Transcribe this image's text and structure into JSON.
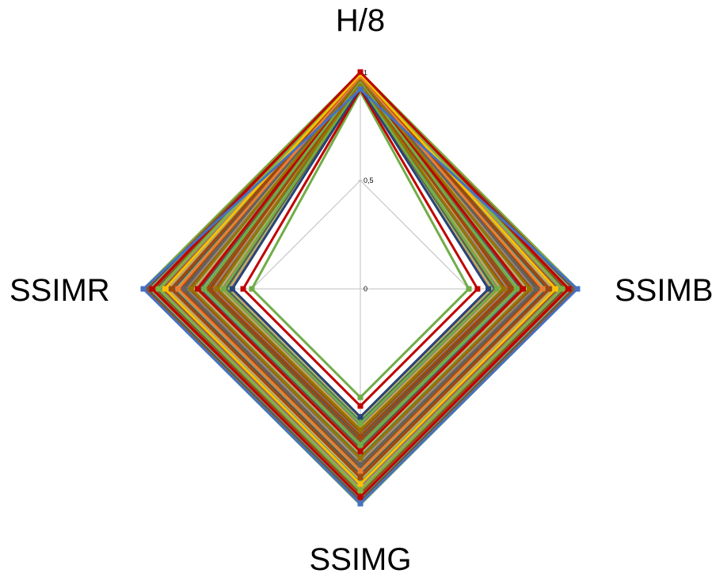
{
  "chart_data": {
    "type": "radar",
    "axes": [
      "H/8",
      "SSIMB",
      "SSIMG",
      "SSIMR"
    ],
    "rlim": [
      0,
      1
    ],
    "ticks": [
      "0",
      "0,5",
      "1"
    ],
    "grid": true,
    "legend": "none",
    "colors": [
      "#4472c4",
      "#ed7d31",
      "#a5a5a5",
      "#ffc000",
      "#5b9bd5",
      "#70ad47",
      "#264478",
      "#9e480e",
      "#636363",
      "#997300",
      "#c00000",
      "#7cb342"
    ],
    "series": [
      {
        "values": [
          0.91,
          0.5,
          0.5,
          0.5
        ],
        "color": "#70ad47"
      },
      {
        "values": [
          0.92,
          0.54,
          0.54,
          0.54
        ],
        "color": "#c00000"
      },
      {
        "values": [
          0.93,
          0.59,
          0.59,
          0.59
        ],
        "color": "#264478"
      },
      {
        "values": [
          0.94,
          0.63,
          0.62,
          0.63
        ],
        "color": "#70ad47"
      },
      {
        "values": [
          0.95,
          0.66,
          0.65,
          0.66
        ],
        "color": "#997300"
      },
      {
        "values": [
          0.96,
          0.69,
          0.68,
          0.69
        ],
        "color": "#9e480e"
      },
      {
        "values": [
          0.96,
          0.72,
          0.72,
          0.72
        ],
        "color": "#70ad47"
      },
      {
        "values": [
          0.97,
          0.75,
          0.75,
          0.75
        ],
        "color": "#c00000"
      },
      {
        "values": [
          0.97,
          0.78,
          0.78,
          0.78
        ],
        "color": "#997300"
      },
      {
        "values": [
          0.98,
          0.81,
          0.81,
          0.81
        ],
        "color": "#636363"
      },
      {
        "values": [
          0.98,
          0.84,
          0.84,
          0.84
        ],
        "color": "#ed7d31"
      },
      {
        "values": [
          0.99,
          0.87,
          0.87,
          0.87
        ],
        "color": "#9e480e"
      },
      {
        "values": [
          0.99,
          0.9,
          0.9,
          0.9
        ],
        "color": "#ffc000"
      },
      {
        "values": [
          1.0,
          0.93,
          0.93,
          0.93
        ],
        "color": "#7cb342"
      },
      {
        "values": [
          1.0,
          0.96,
          0.96,
          0.96
        ],
        "color": "#c00000"
      },
      {
        "values": [
          0.92,
          1.0,
          0.99,
          1.0
        ],
        "color": "#4472c4"
      }
    ]
  }
}
